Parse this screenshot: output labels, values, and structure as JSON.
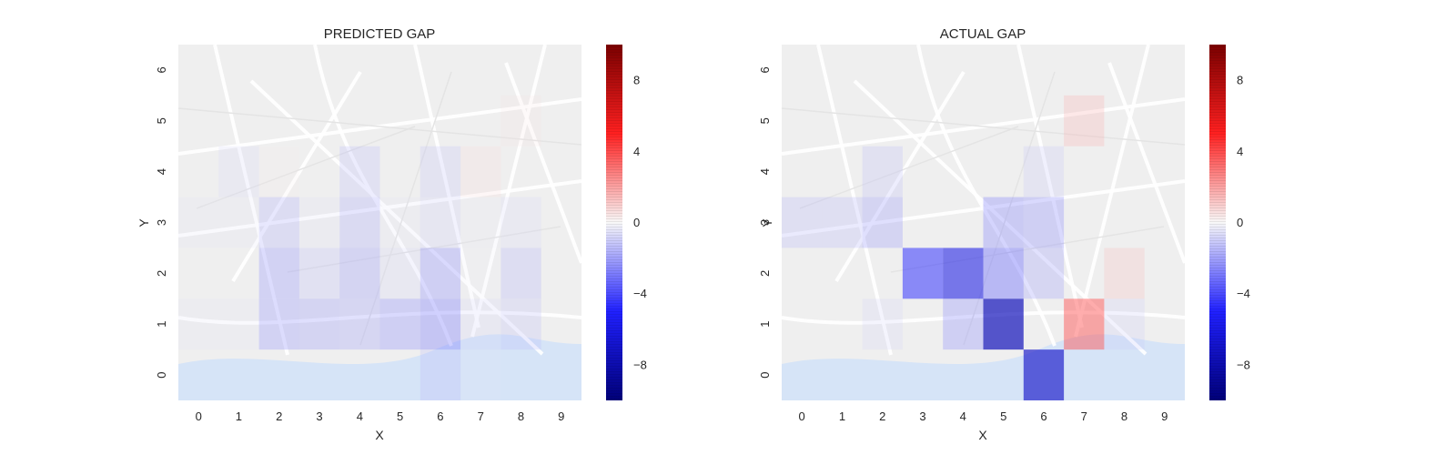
{
  "chart_data": [
    {
      "type": "heatmap",
      "title": "PREDICTED GAP",
      "xlabel": "X",
      "ylabel": "Y",
      "x_ticks": [
        "0",
        "1",
        "2",
        "3",
        "4",
        "5",
        "6",
        "7",
        "8",
        "9"
      ],
      "y_ticks": [
        "0",
        "1",
        "2",
        "3",
        "4",
        "5",
        "6"
      ],
      "background": "city street map",
      "colorbar": {
        "range": [
          -10,
          10
        ],
        "ticks": [
          "8",
          "4",
          "0",
          "−4",
          "−8"
        ],
        "tick_values": [
          8,
          4,
          0,
          -4,
          -8
        ]
      },
      "cells": [
        {
          "x": 0,
          "y": 1,
          "v": -0.6
        },
        {
          "x": 1,
          "y": 1,
          "v": -0.6
        },
        {
          "x": 2,
          "y": 1,
          "v": -2.4
        },
        {
          "x": 3,
          "y": 1,
          "v": -2.3
        },
        {
          "x": 4,
          "y": 1,
          "v": -2.2
        },
        {
          "x": 5,
          "y": 1,
          "v": -2.6
        },
        {
          "x": 6,
          "y": 1,
          "v": -3.0
        },
        {
          "x": 7,
          "y": 1,
          "v": -1.0
        },
        {
          "x": 8,
          "y": 1,
          "v": -1.5
        },
        {
          "x": 2,
          "y": 2,
          "v": -2.4
        },
        {
          "x": 3,
          "y": 2,
          "v": -1.6
        },
        {
          "x": 4,
          "y": 2,
          "v": -2.3
        },
        {
          "x": 5,
          "y": 2,
          "v": -1.0
        },
        {
          "x": 6,
          "y": 2,
          "v": -2.6
        },
        {
          "x": 7,
          "y": 2,
          "v": -0.3
        },
        {
          "x": 8,
          "y": 2,
          "v": -1.8
        },
        {
          "x": 0,
          "y": 3,
          "v": -0.5
        },
        {
          "x": 1,
          "y": 3,
          "v": -0.5
        },
        {
          "x": 2,
          "y": 3,
          "v": -1.9
        },
        {
          "x": 3,
          "y": 3,
          "v": -0.7
        },
        {
          "x": 4,
          "y": 3,
          "v": -2.0
        },
        {
          "x": 5,
          "y": 3,
          "v": -0.6
        },
        {
          "x": 6,
          "y": 3,
          "v": -1.2
        },
        {
          "x": 7,
          "y": 3,
          "v": -0.4
        },
        {
          "x": 8,
          "y": 3,
          "v": -0.9
        },
        {
          "x": 1,
          "y": 4,
          "v": -0.9
        },
        {
          "x": 2,
          "y": 4,
          "v": 0.3
        },
        {
          "x": 4,
          "y": 4,
          "v": -1.6
        },
        {
          "x": 6,
          "y": 4,
          "v": -1.4
        },
        {
          "x": 7,
          "y": 4,
          "v": 0.8
        },
        {
          "x": 6,
          "y": 0,
          "v": -1.6
        },
        {
          "x": 7,
          "y": 0,
          "v": -0.4
        },
        {
          "x": 8,
          "y": 5,
          "v": 0.6
        }
      ]
    },
    {
      "type": "heatmap",
      "title": "ACTUAL GAP",
      "xlabel": "X",
      "ylabel": "Y",
      "x_ticks": [
        "0",
        "1",
        "2",
        "3",
        "4",
        "5",
        "6",
        "7",
        "8",
        "9"
      ],
      "y_ticks": [
        "0",
        "1",
        "2",
        "3",
        "4",
        "5",
        "6"
      ],
      "background": "city street map",
      "colorbar": {
        "range": [
          -10,
          10
        ],
        "ticks": [
          "8",
          "4",
          "0",
          "−4",
          "−8"
        ],
        "tick_values": [
          8,
          4,
          0,
          -4,
          -8
        ]
      },
      "cells": [
        {
          "x": 6,
          "y": 0,
          "v": -7.0
        },
        {
          "x": 2,
          "y": 1,
          "v": -1.0
        },
        {
          "x": 4,
          "y": 1,
          "v": -2.6
        },
        {
          "x": 5,
          "y": 1,
          "v": -7.6
        },
        {
          "x": 7,
          "y": 1,
          "v": 4.2
        },
        {
          "x": 8,
          "y": 1,
          "v": -1.2
        },
        {
          "x": 3,
          "y": 2,
          "v": -5.0
        },
        {
          "x": 4,
          "y": 2,
          "v": -6.0
        },
        {
          "x": 5,
          "y": 2,
          "v": -3.5
        },
        {
          "x": 6,
          "y": 2,
          "v": -2.2
        },
        {
          "x": 8,
          "y": 2,
          "v": 1.5
        },
        {
          "x": 0,
          "y": 3,
          "v": -1.7
        },
        {
          "x": 1,
          "y": 3,
          "v": -1.7
        },
        {
          "x": 2,
          "y": 3,
          "v": -2.3
        },
        {
          "x": 5,
          "y": 3,
          "v": -2.8
        },
        {
          "x": 6,
          "y": 3,
          "v": -2.6
        },
        {
          "x": 2,
          "y": 4,
          "v": -1.5
        },
        {
          "x": 6,
          "y": 4,
          "v": -1.3
        },
        {
          "x": 7,
          "y": 5,
          "v": 1.8
        }
      ]
    }
  ]
}
